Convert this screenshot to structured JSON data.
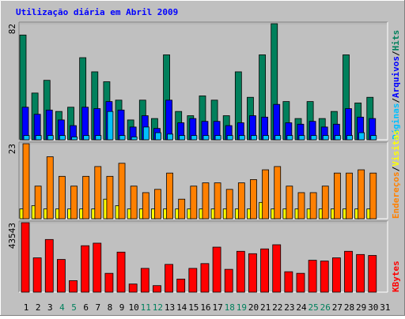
{
  "chart_data": [
    {
      "type": "bar",
      "title": "Utilização diária em Abril 2009",
      "ylim": [
        0,
        82
      ],
      "yticks": [
        82
      ],
      "series": [
        {
          "name": "Hits",
          "color": "#00805c",
          "values": [
            74,
            33,
            42,
            20,
            23,
            58,
            48,
            41,
            28,
            14,
            28,
            15,
            60,
            20,
            17,
            31,
            28,
            17,
            48,
            30,
            60,
            82,
            27,
            15,
            27,
            15,
            20,
            60,
            26,
            30,
            null
          ]
        },
        {
          "name": "Arquivos",
          "color": "#0000ff",
          "values": [
            23,
            18,
            21,
            14,
            10,
            23,
            22,
            27,
            21,
            9,
            17,
            8,
            28,
            12,
            15,
            13,
            13,
            10,
            12,
            17,
            16,
            25,
            12,
            11,
            13,
            9,
            11,
            22,
            16,
            15,
            null
          ]
        },
        {
          "name": "Páginas",
          "color": "#00c0ff",
          "values": [
            3,
            3,
            3,
            3,
            2,
            3,
            3,
            20,
            3,
            2,
            9,
            5,
            4,
            3,
            3,
            3,
            3,
            3,
            3,
            3,
            3,
            3,
            3,
            3,
            3,
            3,
            3,
            3,
            5,
            3,
            null
          ]
        }
      ]
    },
    {
      "type": "bar",
      "ylim": [
        0,
        23
      ],
      "yticks": [
        23
      ],
      "series": [
        {
          "name": "Visitas",
          "color": "#ffff00",
          "values": [
            3,
            4,
            3,
            3,
            3,
            3,
            3,
            6,
            4,
            3,
            3,
            3,
            3,
            3,
            3,
            3,
            3,
            3,
            3,
            3,
            5,
            3,
            3,
            3,
            3,
            3,
            3,
            3,
            3,
            3,
            null
          ]
        },
        {
          "name": "Endereços",
          "color": "#ff8000",
          "values": [
            23,
            10,
            19,
            13,
            10,
            13,
            16,
            13,
            17,
            10,
            8,
            9,
            14,
            6,
            10,
            11,
            11,
            9,
            11,
            12,
            15,
            16,
            10,
            8,
            8,
            10,
            14,
            14,
            15,
            14,
            null
          ]
        }
      ]
    },
    {
      "type": "bar",
      "ylim": [
        0,
        43543
      ],
      "yticks": [
        43543
      ],
      "categories": [
        "1",
        "2",
        "3",
        "4",
        "5",
        "6",
        "7",
        "8",
        "9",
        "10",
        "11",
        "12",
        "13",
        "14",
        "15",
        "16",
        "17",
        "18",
        "19",
        "20",
        "21",
        "22",
        "23",
        "24",
        "25",
        "26",
        "27",
        "28",
        "29",
        "30",
        "31"
      ],
      "label_colors": [
        "#000",
        "#000",
        "#000",
        "#00805c",
        "#00805c",
        "#000",
        "#000",
        "#000",
        "#000",
        "#000",
        "#00805c",
        "#00805c",
        "#000",
        "#000",
        "#000",
        "#000",
        "#000",
        "#00805c",
        "#00805c",
        "#000",
        "#000",
        "#000",
        "#000",
        "#000",
        "#00805c",
        "#00805c",
        "#000",
        "#000",
        "#000",
        "#000",
        "#000"
      ],
      "series": [
        {
          "name": "KBytes",
          "color": "#ff0000",
          "values": [
            43543,
            21500,
            33000,
            20500,
            7200,
            29100,
            30700,
            11800,
            25100,
            5100,
            14900,
            4100,
            17400,
            8200,
            14900,
            17900,
            28200,
            14300,
            25600,
            24100,
            27100,
            29700,
            12800,
            11800,
            20000,
            19500,
            21500,
            25600,
            23600,
            23000,
            null
          ]
        }
      ]
    }
  ]
}
